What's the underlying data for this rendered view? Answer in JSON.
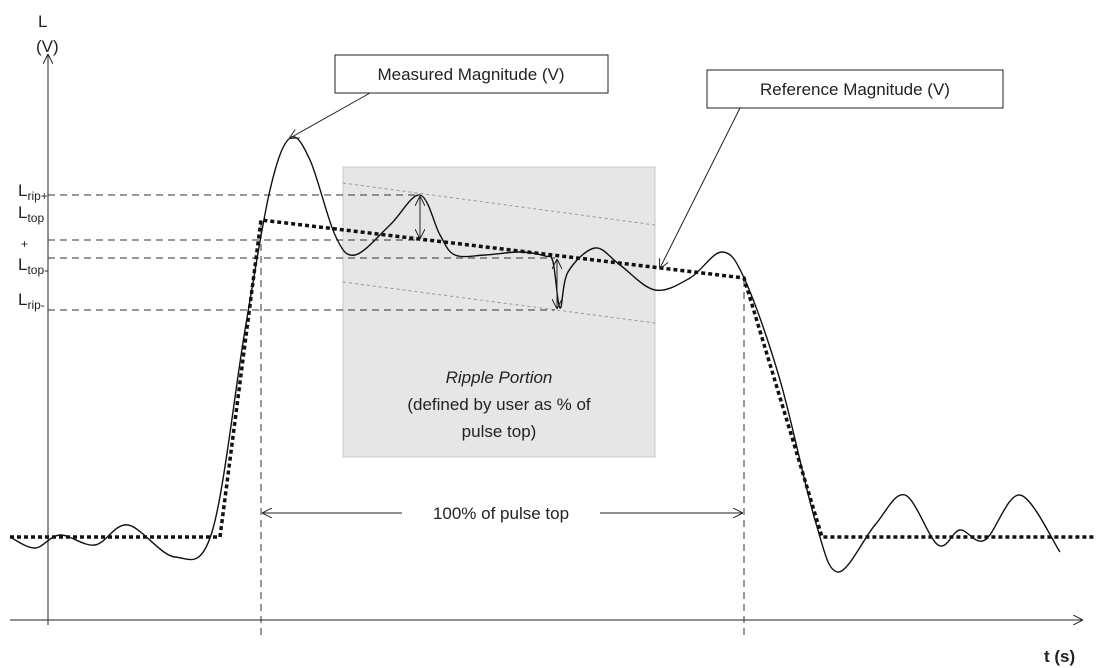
{
  "axes": {
    "y_label": "L",
    "y_unit": "(V)",
    "x_label": "t (s)"
  },
  "callouts": {
    "measured": "Measured Magnitude (V)",
    "reference": "Reference Magnitude (V)"
  },
  "levels": [
    {
      "main": "L",
      "sub": "rip+"
    },
    {
      "main": "L",
      "sub": "top",
      "sup": "+"
    },
    {
      "main": "L",
      "sub": "top-"
    },
    {
      "main": "L",
      "sub": "rip-"
    }
  ],
  "ripple": {
    "title": "Ripple Portion",
    "line1": "(defined by user as % of",
    "line2": "pulse top)"
  },
  "span_label": "100% of pulse top"
}
